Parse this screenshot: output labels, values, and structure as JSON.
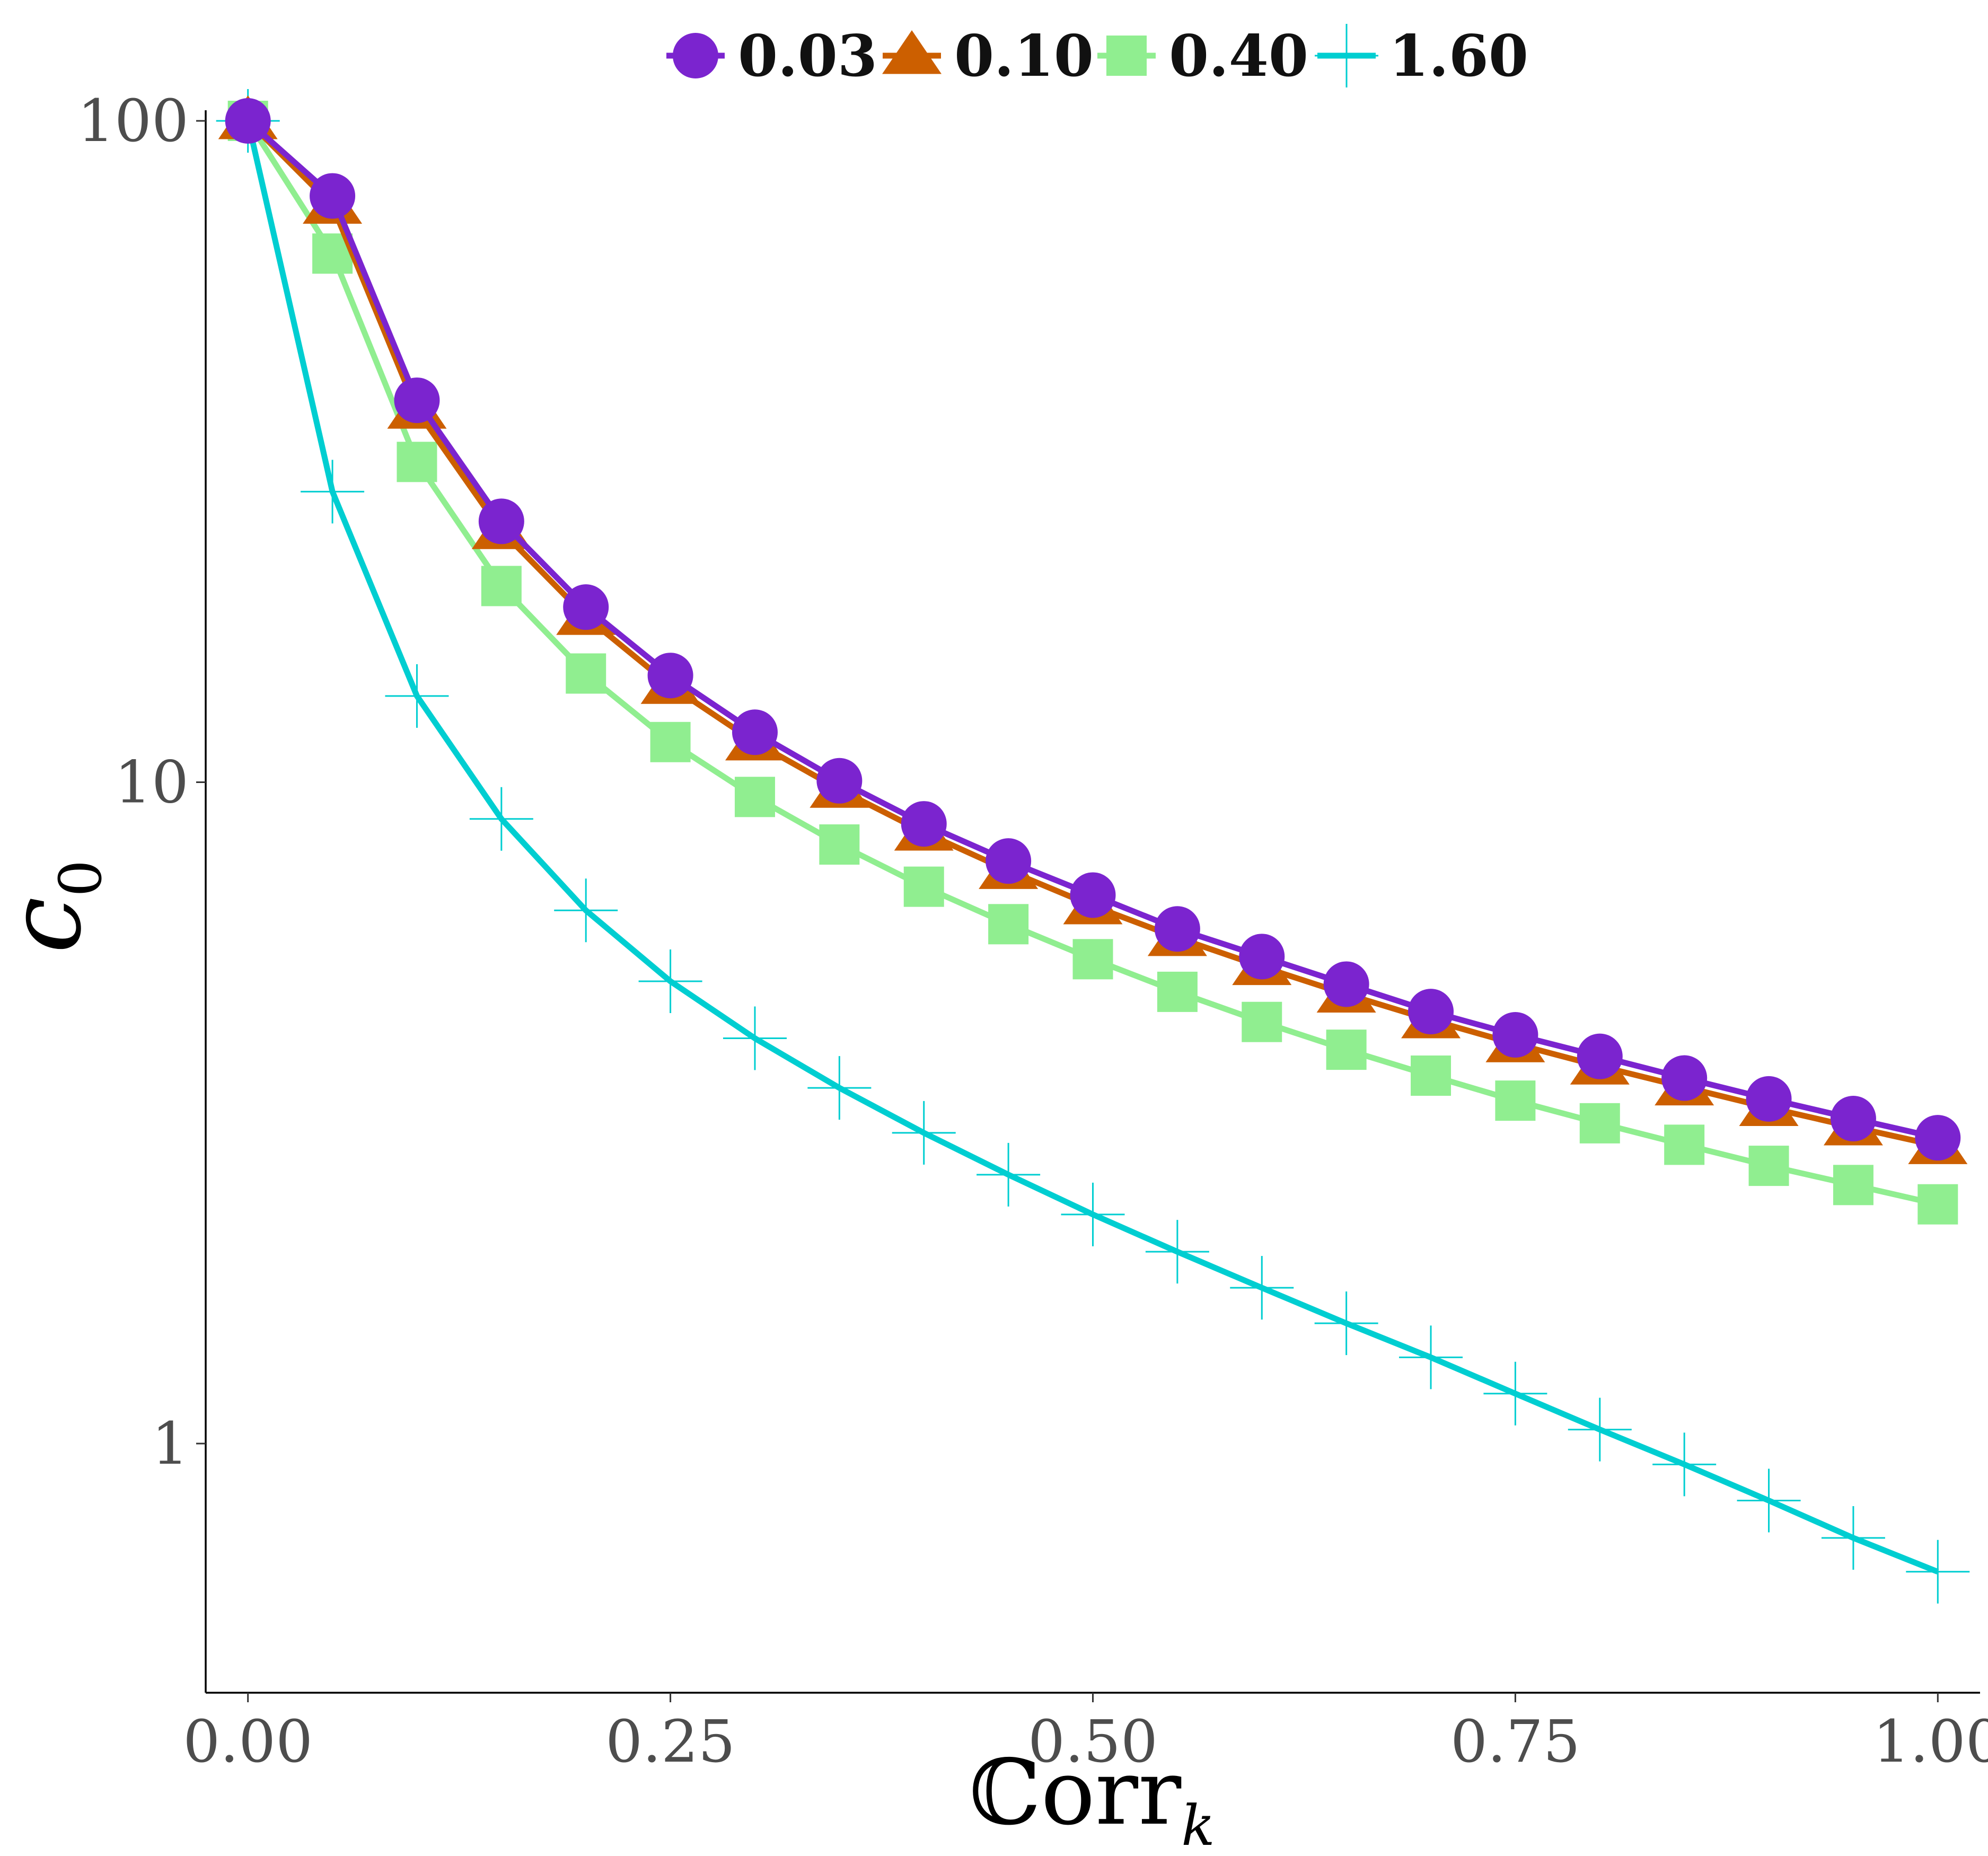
{
  "chart_data": {
    "type": "line",
    "title": "",
    "xlabel": "ℂorr",
    "xlabel_subscript": "k",
    "ylabel": "c",
    "ylabel_subscript": "0",
    "yscale": "log",
    "xlim": [
      -0.025,
      1.025
    ],
    "ylim": [
      0.42,
      100
    ],
    "x_ticks": [
      0,
      0.25,
      0.5,
      0.75,
      1
    ],
    "x_tick_labels": [
      "0.00",
      "0.25",
      "0.50",
      "0.75",
      "1.00"
    ],
    "y_ticks": [
      1,
      10,
      100
    ],
    "y_tick_labels": [
      "1",
      "10",
      "100"
    ],
    "grid": false,
    "legend_position": "top",
    "x": [
      0,
      0.05,
      0.1,
      0.15,
      0.2,
      0.25,
      0.3,
      0.35,
      0.4,
      0.45,
      0.5,
      0.55,
      0.6,
      0.65,
      0.7,
      0.75,
      0.8,
      0.85,
      0.9,
      0.95,
      1.0
    ],
    "series": [
      {
        "name": "0.03",
        "marker": "circle",
        "color": "#7B24CF",
        "values": [
          100,
          77,
          37.8,
          24.8,
          18.4,
          14.5,
          11.9,
          10.05,
          8.65,
          7.6,
          6.75,
          6.0,
          5.45,
          4.95,
          4.5,
          4.15,
          3.85,
          3.57,
          3.32,
          3.1,
          2.9
        ]
      },
      {
        "name": "0.10",
        "marker": "triangle",
        "color": "#CC5F00",
        "values": [
          100,
          74.5,
          36.5,
          24.0,
          17.8,
          14.0,
          11.5,
          9.75,
          8.4,
          7.35,
          6.5,
          5.82,
          5.26,
          4.78,
          4.37,
          4.02,
          3.72,
          3.46,
          3.22,
          3.01,
          2.82
        ]
      },
      {
        "name": "0.40",
        "marker": "square",
        "color": "#90EE90",
        "values": [
          100,
          63.0,
          30.5,
          19.8,
          14.6,
          11.5,
          9.5,
          8.05,
          6.95,
          6.1,
          5.4,
          4.82,
          4.34,
          3.94,
          3.6,
          3.3,
          3.05,
          2.83,
          2.63,
          2.46,
          2.3
        ]
      },
      {
        "name": "1.60",
        "marker": "cross",
        "color": "#00CED1",
        "values": [
          100,
          27.5,
          13.5,
          8.8,
          6.4,
          5.0,
          4.1,
          3.45,
          2.95,
          2.55,
          2.22,
          1.95,
          1.72,
          1.52,
          1.35,
          1.19,
          1.05,
          0.93,
          0.82,
          0.72,
          0.64
        ]
      }
    ]
  }
}
